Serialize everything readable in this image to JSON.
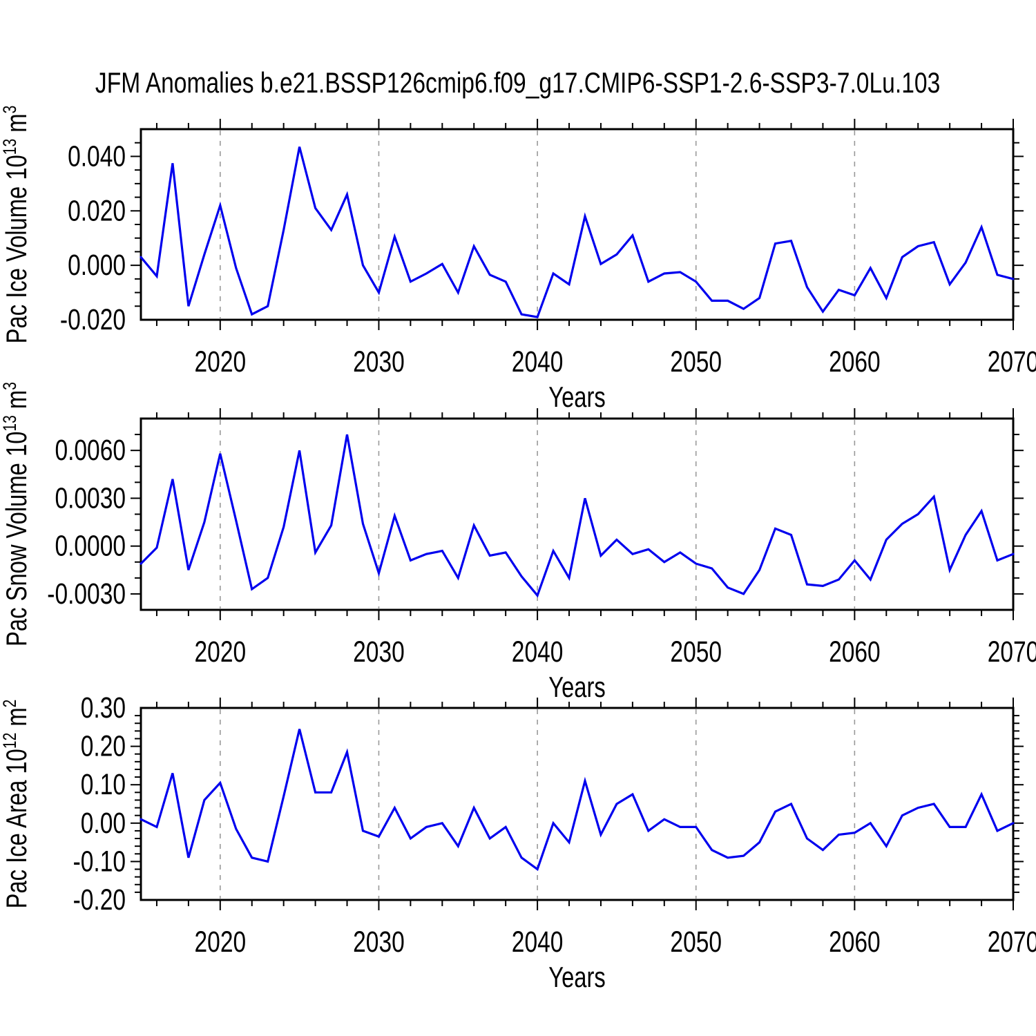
{
  "title": "JFM Anomalies b.e21.BSSP126cmip6.f09_g17.CMIP6-SSP1-2.6-SSP3-7.0Lu.103",
  "line_color": "#0000ee",
  "axis_color": "#000000",
  "gridline_color": "#999999",
  "xlabel": "Years",
  "years": [
    2015,
    2016,
    2017,
    2018,
    2019,
    2020,
    2021,
    2022,
    2023,
    2024,
    2025,
    2026,
    2027,
    2028,
    2029,
    2030,
    2031,
    2032,
    2033,
    2034,
    2035,
    2036,
    2037,
    2038,
    2039,
    2040,
    2041,
    2042,
    2043,
    2044,
    2045,
    2046,
    2047,
    2048,
    2049,
    2050,
    2051,
    2052,
    2053,
    2054,
    2055,
    2056,
    2057,
    2058,
    2059,
    2060,
    2061,
    2062,
    2063,
    2064,
    2065,
    2066,
    2067,
    2068,
    2069,
    2070
  ],
  "chart_data": [
    {
      "type": "line",
      "ylabel": "Pac Ice Volume 10^13 m^3",
      "ylabel_parts": {
        "base": "Pac Ice Volume 10",
        "sup": "13",
        "base2": " m",
        "sup2": "3"
      },
      "xlabel": "Years",
      "xlim": [
        2015,
        2070
      ],
      "ylim": [
        -0.02,
        0.05
      ],
      "ytick_labels": [
        "0.040",
        "0.020",
        "0.000",
        "-0.020"
      ],
      "ytick_values": [
        0.04,
        0.02,
        0.0,
        -0.02
      ],
      "ytick_minor_step": 0.005,
      "xtick_labels": [
        "2020",
        "2030",
        "2040",
        "2050",
        "2060",
        "2070"
      ],
      "xtick_values": [
        2020,
        2030,
        2040,
        2050,
        2060,
        2070
      ],
      "xtick_minor_step": 2,
      "gridlines_x": [
        2020,
        2030,
        2040,
        2050,
        2060
      ],
      "grid_style": "dashed-vertical",
      "legend": "none",
      "values": [
        0.003,
        -0.004,
        0.0375,
        -0.015,
        0.004,
        0.022,
        -0.001,
        -0.018,
        -0.015,
        0.013,
        0.0435,
        0.021,
        0.013,
        0.026,
        0.0,
        -0.01,
        0.0105,
        -0.006,
        -0.003,
        0.0005,
        -0.01,
        0.007,
        -0.0035,
        -0.006,
        -0.018,
        -0.019,
        -0.003,
        -0.007,
        0.018,
        0.0005,
        0.004,
        0.011,
        -0.006,
        -0.003,
        -0.0025,
        -0.006,
        -0.013,
        -0.013,
        -0.016,
        -0.012,
        0.008,
        0.009,
        -0.008,
        -0.017,
        -0.009,
        -0.011,
        -0.001,
        -0.012,
        0.003,
        0.007,
        0.0085,
        -0.007,
        0.001,
        0.014,
        -0.0035,
        -0.005
      ]
    },
    {
      "type": "line",
      "ylabel": "Pac Snow Volume 10^13 m^3",
      "ylabel_parts": {
        "base": "Pac Snow Volume 10",
        "sup": "13",
        "base2": " m",
        "sup2": "3"
      },
      "xlabel": "Years",
      "xlim": [
        2015,
        2070
      ],
      "ylim": [
        -0.004,
        0.008
      ],
      "ytick_labels": [
        "0.0060",
        "0.0030",
        "0.0000",
        "-0.0030"
      ],
      "ytick_values": [
        0.006,
        0.003,
        0.0,
        -0.003
      ],
      "ytick_minor_step": 0.001,
      "xtick_labels": [
        "2020",
        "2030",
        "2040",
        "2050",
        "2060",
        "2070"
      ],
      "xtick_values": [
        2020,
        2030,
        2040,
        2050,
        2060,
        2070
      ],
      "xtick_minor_step": 2,
      "gridlines_x": [
        2020,
        2030,
        2040,
        2050,
        2060
      ],
      "grid_style": "dashed-vertical",
      "legend": "none",
      "values": [
        -0.0011,
        -0.0001,
        0.0042,
        -0.0015,
        0.0015,
        0.0058,
        0.0016,
        -0.0027,
        -0.002,
        0.0012,
        0.006,
        -0.0004,
        0.0013,
        0.007,
        0.0014,
        -0.0017,
        0.0019,
        -0.0009,
        -0.0005,
        -0.0003,
        -0.002,
        0.0013,
        -0.0006,
        -0.0004,
        -0.0019,
        -0.0031,
        -0.0003,
        -0.002,
        0.003,
        -0.0006,
        0.0004,
        -0.0005,
        -0.0002,
        -0.001,
        -0.0004,
        -0.0011,
        -0.0014,
        -0.0026,
        -0.003,
        -0.0015,
        0.0011,
        0.0007,
        -0.0024,
        -0.0025,
        -0.0021,
        -0.0009,
        -0.0021,
        0.0004,
        0.0014,
        0.002,
        0.0031,
        -0.0015,
        0.0007,
        0.0022,
        -0.0009,
        -0.0005
      ]
    },
    {
      "type": "line",
      "ylabel": "Pac Ice Area 10^12 m^2",
      "ylabel_parts": {
        "base": "Pac Ice Area 10",
        "sup": "12",
        "base2": " m",
        "sup2": "2"
      },
      "xlabel": "Years",
      "xlim": [
        2015,
        2070
      ],
      "ylim": [
        -0.2,
        0.3
      ],
      "ytick_labels": [
        "0.30",
        "0.20",
        "0.10",
        "0.00",
        "-0.10",
        "-0.20"
      ],
      "ytick_values": [
        0.3,
        0.2,
        0.1,
        0.0,
        -0.1,
        -0.2
      ],
      "ytick_minor_step": 0.02,
      "xtick_labels": [
        "2020",
        "2030",
        "2040",
        "2050",
        "2060",
        "2070"
      ],
      "xtick_values": [
        2020,
        2030,
        2040,
        2050,
        2060,
        2070
      ],
      "xtick_minor_step": 2,
      "gridlines_x": [
        2020,
        2030,
        2040,
        2050,
        2060
      ],
      "grid_style": "dashed-vertical",
      "legend": "none",
      "values": [
        0.01,
        -0.01,
        0.13,
        -0.09,
        0.06,
        0.105,
        -0.015,
        -0.09,
        -0.1,
        0.07,
        0.245,
        0.08,
        0.08,
        0.185,
        -0.02,
        -0.035,
        0.04,
        -0.04,
        -0.01,
        0.0,
        -0.06,
        0.04,
        -0.04,
        -0.01,
        -0.09,
        -0.12,
        0.0,
        -0.05,
        0.11,
        -0.03,
        0.05,
        0.075,
        -0.02,
        0.01,
        -0.01,
        -0.01,
        -0.07,
        -0.09,
        -0.085,
        -0.05,
        0.03,
        0.05,
        -0.04,
        -0.07,
        -0.03,
        -0.025,
        0.0,
        -0.06,
        0.02,
        0.04,
        0.05,
        -0.01,
        -0.01,
        0.075,
        -0.02,
        0.0
      ]
    }
  ]
}
